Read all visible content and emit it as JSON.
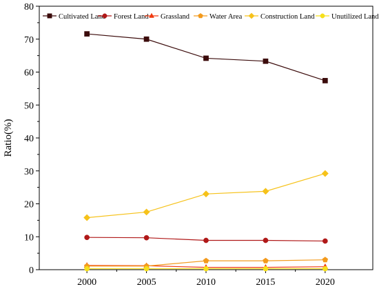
{
  "chart_data": {
    "type": "line",
    "title": "",
    "xlabel": "",
    "ylabel": "Ratio(%)",
    "x": [
      2000,
      2005,
      2010,
      2015,
      2020
    ],
    "xticks": [
      "2000",
      "2005",
      "2010",
      "2015",
      "2020"
    ],
    "xlim": [
      1996,
      2024
    ],
    "ylim": [
      0,
      80
    ],
    "yticks": [
      "0",
      "10",
      "20",
      "30",
      "40",
      "50",
      "60",
      "70",
      "80"
    ],
    "grid": false,
    "legend": "top",
    "series": [
      {
        "name": "Cultivated Land",
        "marker": "square",
        "color": "#3b0b0b",
        "values": [
          71.6,
          70.0,
          64.2,
          63.3,
          57.4
        ]
      },
      {
        "name": "Forest Land",
        "marker": "circle",
        "color": "#b01818",
        "values": [
          9.8,
          9.7,
          8.9,
          8.9,
          8.7
        ]
      },
      {
        "name": "Grassland",
        "marker": "triangle",
        "color": "#f03a10",
        "values": [
          1.3,
          1.2,
          0.7,
          0.7,
          0.9
        ]
      },
      {
        "name": "Water Area",
        "marker": "pentagon",
        "color": "#f39a1c",
        "values": [
          1.1,
          1.1,
          2.7,
          2.7,
          3.0
        ]
      },
      {
        "name": "Construction Land",
        "marker": "diamond",
        "color": "#f6c21a",
        "values": [
          15.8,
          17.5,
          23.0,
          23.8,
          29.2
        ]
      },
      {
        "name": "Unutilized Land",
        "marker": "circle",
        "color": "#f6e01a",
        "values": [
          0.3,
          0.3,
          0.3,
          0.3,
          0.3
        ]
      }
    ]
  }
}
